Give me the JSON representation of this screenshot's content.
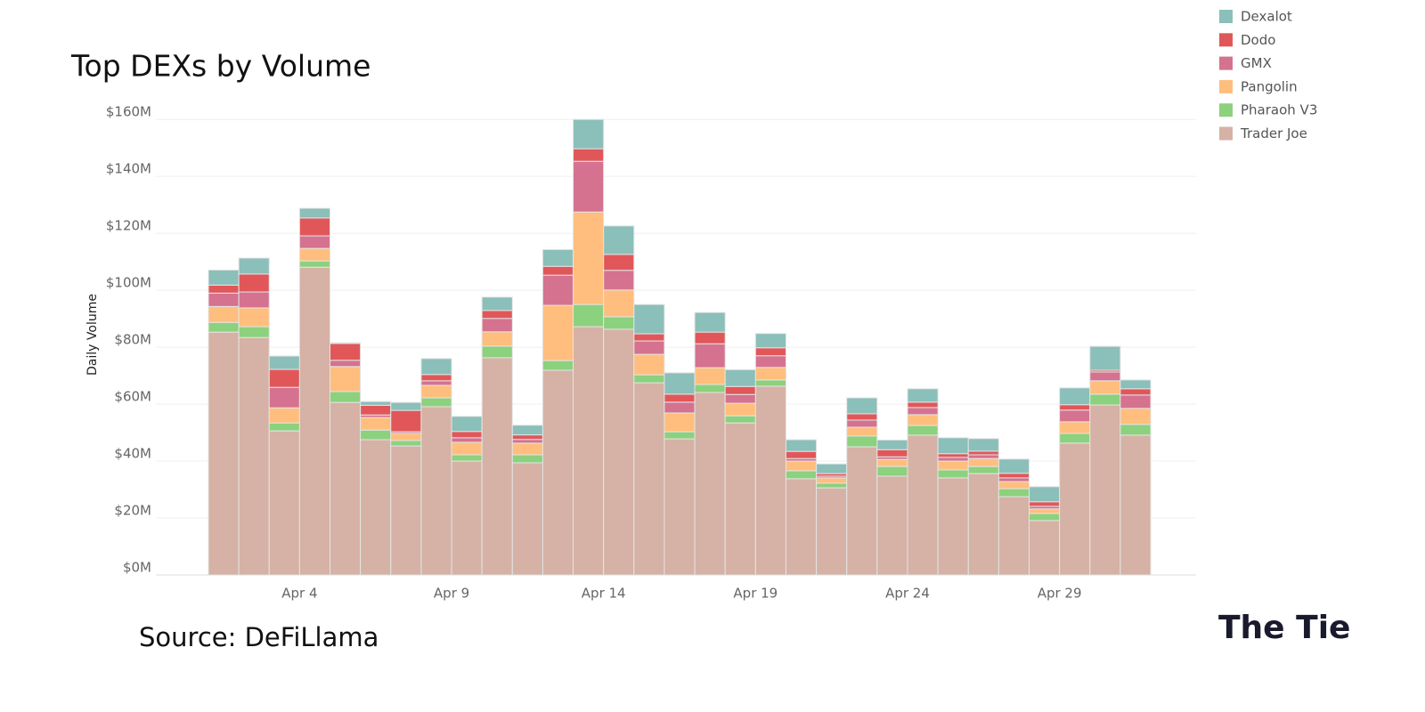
{
  "chart_data": {
    "type": "stacked_bar",
    "title": "Top DEXs by Volume",
    "y_label": "Daily Volume",
    "source": "Source: DeFiLlama",
    "logo": "The Tie",
    "categories": [
      null,
      null,
      null,
      "Apr 4",
      null,
      null,
      null,
      null,
      "Apr 9",
      null,
      null,
      null,
      null,
      "Apr 14",
      null,
      null,
      null,
      null,
      "Apr 19",
      null,
      null,
      null,
      null,
      "Apr 24",
      null,
      null,
      null,
      null,
      "Apr 29",
      null,
      null
    ],
    "series": [
      {
        "name": "Dexalot",
        "color": "#8bbfb9",
        "values": [
          5.3,
          5.6,
          4.7,
          3.4,
          0.3,
          1.3,
          2.8,
          5.6,
          5.3,
          4.7,
          3.4,
          5.9,
          10.3,
          10,
          10.3,
          7.5,
          6.9,
          5.9,
          5,
          4.1,
          3.4,
          5.6,
          3.4,
          4.7,
          5.6,
          4.4,
          5,
          5.3,
          5.9,
          8.4,
          3.1
        ]
      },
      {
        "name": "Dodo",
        "color": "#e15759",
        "values": [
          2.8,
          6.3,
          6.3,
          6.3,
          5.9,
          3.4,
          7.5,
          2.2,
          2.2,
          2.8,
          1.6,
          3.1,
          4.4,
          5.6,
          2.5,
          2.8,
          4.1,
          2.8,
          2.8,
          2.5,
          0.9,
          2.2,
          2.5,
          1.9,
          1.3,
          1.3,
          1.6,
          1.6,
          1.9,
          0.6,
          2.2
        ]
      },
      {
        "name": "GMX",
        "color": "#d4728f",
        "values": [
          4.7,
          5.6,
          7.2,
          4.4,
          2.2,
          0.9,
          0.6,
          1.6,
          1.6,
          4.7,
          1.3,
          10.6,
          17.8,
          6.9,
          4.7,
          3.8,
          8.4,
          3.1,
          4.1,
          0.9,
          0.6,
          2.5,
          0.9,
          2.5,
          1.3,
          1.3,
          1.3,
          0.9,
          4.1,
          3.1,
          4.7
        ]
      },
      {
        "name": "Pangolin",
        "color": "#ffbe7d",
        "values": [
          5.6,
          6.6,
          5.3,
          4.4,
          8.8,
          4.4,
          2.5,
          4.4,
          4.4,
          5,
          4.1,
          19.4,
          32.5,
          9.4,
          7.2,
          6.6,
          5.9,
          4.4,
          4.4,
          3.4,
          1.9,
          3.1,
          2.5,
          3.8,
          3.1,
          2.8,
          2.5,
          1.6,
          4.1,
          4.7,
          5.6
        ]
      },
      {
        "name": "Pharaoh V3",
        "color": "#8cd17d",
        "values": [
          3.4,
          3.8,
          2.8,
          2.2,
          3.8,
          3.4,
          1.9,
          3.1,
          2.2,
          4.1,
          2.8,
          3.4,
          7.8,
          4.4,
          2.8,
          2.5,
          2.8,
          2.5,
          2.2,
          2.8,
          1.6,
          3.8,
          3.4,
          3.4,
          2.8,
          2.5,
          2.8,
          2.5,
          3.4,
          3.8,
          3.8
        ]
      },
      {
        "name": "Trader Joe",
        "color": "#d5b2a5",
        "values": [
          85.3,
          83.4,
          50.6,
          108.1,
          60.6,
          47.5,
          45.3,
          59.1,
          40,
          76.3,
          39.4,
          71.9,
          87.2,
          86.3,
          67.5,
          47.8,
          64.1,
          53.4,
          66.3,
          33.8,
          30.6,
          45,
          34.7,
          49.1,
          34.1,
          35.6,
          27.5,
          19.1,
          46.3,
          59.7,
          49.1
        ]
      }
    ],
    "ylim": [
      0,
      161
    ],
    "yticks": [
      {
        "value": 0,
        "label": "$0M"
      },
      {
        "value": 20,
        "label": "$20M"
      },
      {
        "value": 40,
        "label": "$40M"
      },
      {
        "value": 60,
        "label": "$60M"
      },
      {
        "value": 80,
        "label": "$80M"
      },
      {
        "value": 100,
        "label": "$100M"
      },
      {
        "value": 120,
        "label": "$120M"
      },
      {
        "value": 140,
        "label": "$140M"
      },
      {
        "value": 160,
        "label": "$160M"
      }
    ],
    "grid": true
  }
}
